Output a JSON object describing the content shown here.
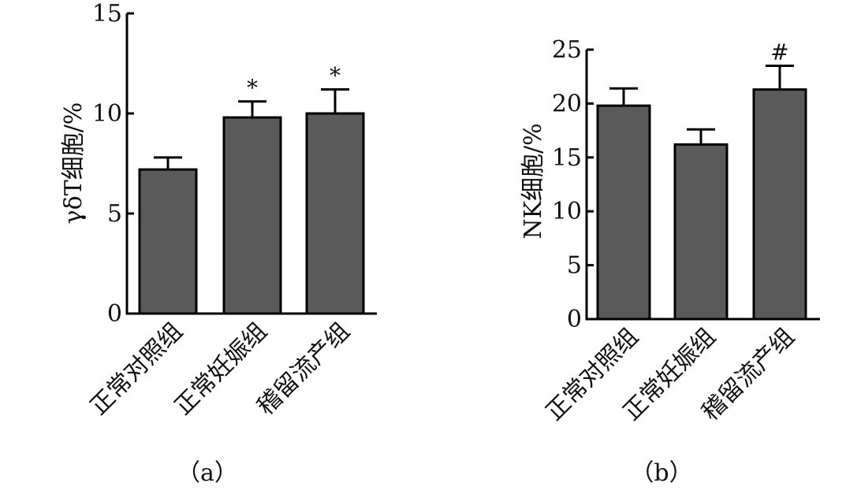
{
  "chart_data": [
    {
      "type": "bar",
      "panel_label": "（a）",
      "ylabel": "γδT细胞/%",
      "categories": [
        "正常对照组",
        "正常妊娠组",
        "稽留流产组"
      ],
      "values": [
        7.2,
        9.8,
        10.0
      ],
      "errors": [
        0.6,
        0.8,
        1.2
      ],
      "annotations": [
        "",
        "*",
        "*"
      ],
      "ylim": [
        0,
        15
      ],
      "yticks": [
        "0",
        "5",
        "10",
        "15"
      ],
      "ytick_values": [
        0,
        5,
        10,
        15
      ],
      "bar_color": "#5a5a5a",
      "grid": false
    },
    {
      "type": "bar",
      "panel_label": "（b）",
      "ylabel": "NK细胞/%",
      "categories": [
        "正常对照组",
        "正常妊娠组",
        "稽留流产组"
      ],
      "values": [
        19.8,
        16.2,
        21.3
      ],
      "errors": [
        1.6,
        1.4,
        2.2
      ],
      "annotations": [
        "",
        "",
        "#"
      ],
      "ylim": [
        0,
        25
      ],
      "yticks": [
        "0",
        "5",
        "10",
        "15",
        "20",
        "25"
      ],
      "ytick_values": [
        0,
        5,
        10,
        15,
        20,
        25
      ],
      "bar_color": "#5a5a5a",
      "grid": false
    }
  ]
}
